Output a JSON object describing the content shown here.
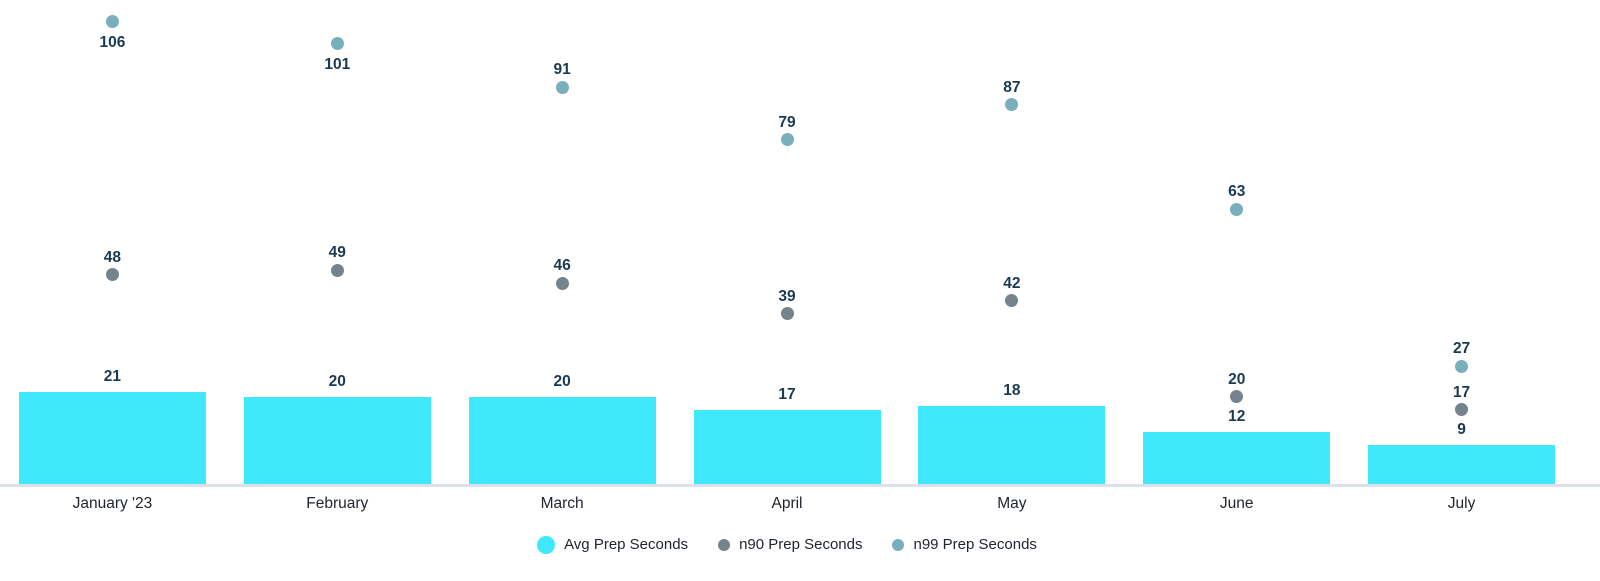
{
  "chart_data": {
    "type": "bar",
    "title": "",
    "xlabel": "",
    "ylabel": "",
    "categories": [
      "January '23",
      "February",
      "March",
      "April",
      "May",
      "June",
      "July"
    ],
    "series": [
      {
        "name": "Avg Prep Seconds",
        "mark": "bar",
        "color": "#3EE7FA",
        "values": [
          21,
          20,
          20,
          17,
          18,
          12,
          9
        ]
      },
      {
        "name": "n90 Prep Seconds",
        "mark": "point",
        "color": "#75838D",
        "values": [
          48,
          49,
          46,
          39,
          42,
          20,
          17
        ],
        "label_below": [
          false,
          false,
          false,
          false,
          false,
          false,
          false
        ]
      },
      {
        "name": "n99 Prep Seconds",
        "mark": "point",
        "color": "#79AFBC",
        "values": [
          106,
          101,
          91,
          79,
          87,
          63,
          27
        ],
        "label_below": [
          true,
          true,
          false,
          false,
          false,
          false,
          false
        ]
      }
    ],
    "ylim": [
      0,
      111
    ],
    "grid": false,
    "value_labels": true,
    "legend_position": "bottom",
    "colors": {
      "value_label": "#1B3A52",
      "axis_label": "#20262E",
      "axis_line": "#DBE0EA",
      "background": "#FFFFFF"
    }
  }
}
